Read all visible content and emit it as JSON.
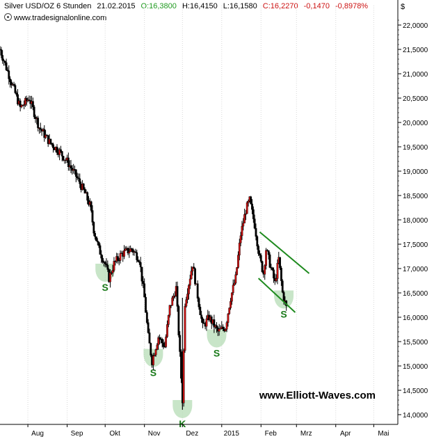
{
  "header": {
    "symbol": "Silver USD/OZ 6 Stunden",
    "date": "21.02.2015",
    "open": "O:16,3800",
    "high": "H:16,4150",
    "low": "L:16,1580",
    "close": "C:16,2270",
    "change": "-0,1470",
    "change_pct": "-0,8978%",
    "source": "www.tradesignalonline.com",
    "currency": "$"
  },
  "watermark": "www.Elliott-Waves.com",
  "colors": {
    "candle_up": "#cc1111",
    "candle_down": "#000000",
    "trendline": "#1e8a1e",
    "marker_fill": "#b5dcb5",
    "marker_text": "#1a7a1a",
    "grid": "#d8d8d8"
  },
  "chart_data": {
    "type": "candlestick",
    "title": "Silver USD/OZ 6 Stunden",
    "ylim": [
      13.8,
      22.4
    ],
    "y_ticks": [
      "22,0000",
      "21,5000",
      "21,0000",
      "20,5000",
      "20,0000",
      "19,5000",
      "19,0000",
      "18,5000",
      "18,0000",
      "17,5000",
      "17,0000",
      "16,5000",
      "16,0000",
      "15,5000",
      "15,0000",
      "14,5000",
      "14,0000"
    ],
    "y_tick_values": [
      22.0,
      21.5,
      21.0,
      20.5,
      20.0,
      19.5,
      19.0,
      18.5,
      18.0,
      17.5,
      17.0,
      16.5,
      16.0,
      15.5,
      15.0,
      14.5,
      14.0
    ],
    "x_ticks": [
      "Aug",
      "Sep",
      "Okt",
      "Nov",
      "Dez",
      "2015",
      "Feb",
      "Mrz",
      "Apr",
      "Mai"
    ],
    "x_tick_dates": [
      "2014-08-01",
      "2014-09-01",
      "2014-10-01",
      "2014-11-01",
      "2014-12-01",
      "2015-01-01",
      "2015-02-01",
      "2015-03-01",
      "2015-04-01",
      "2015-05-01"
    ],
    "x_range": [
      "2014-07-10",
      "2015-05-20"
    ],
    "grid": "vertical",
    "price_path": [
      {
        "date": "2014-07-10",
        "price": 21.5
      },
      {
        "date": "2014-07-18",
        "price": 20.9
      },
      {
        "date": "2014-07-26",
        "price": 20.3
      },
      {
        "date": "2014-08-02",
        "price": 20.5
      },
      {
        "date": "2014-08-10",
        "price": 19.9
      },
      {
        "date": "2014-08-18",
        "price": 19.6
      },
      {
        "date": "2014-08-26",
        "price": 19.4
      },
      {
        "date": "2014-09-01",
        "price": 19.2
      },
      {
        "date": "2014-09-08",
        "price": 18.9
      },
      {
        "date": "2014-09-14",
        "price": 18.6
      },
      {
        "date": "2014-09-19",
        "price": 18.3
      },
      {
        "date": "2014-09-22",
        "price": 17.8
      },
      {
        "date": "2014-09-26",
        "price": 17.4
      },
      {
        "date": "2014-10-01",
        "price": 17.1
      },
      {
        "date": "2014-10-04",
        "price": 16.8
      },
      {
        "date": "2014-10-08",
        "price": 17.1
      },
      {
        "date": "2014-10-14",
        "price": 17.3
      },
      {
        "date": "2014-10-22",
        "price": 17.4
      },
      {
        "date": "2014-10-28",
        "price": 17.2
      },
      {
        "date": "2014-11-01",
        "price": 16.4
      },
      {
        "date": "2014-11-04",
        "price": 15.6
      },
      {
        "date": "2014-11-07",
        "price": 15.1
      },
      {
        "date": "2014-11-12",
        "price": 15.6
      },
      {
        "date": "2014-11-17",
        "price": 15.4
      },
      {
        "date": "2014-11-21",
        "price": 16.2
      },
      {
        "date": "2014-11-26",
        "price": 16.6
      },
      {
        "date": "2014-12-01",
        "price": 14.3
      },
      {
        "date": "2014-12-03",
        "price": 16.3
      },
      {
        "date": "2014-12-09",
        "price": 17.1
      },
      {
        "date": "2014-12-12",
        "price": 16.6
      },
      {
        "date": "2014-12-17",
        "price": 15.8
      },
      {
        "date": "2014-12-22",
        "price": 16.0
      },
      {
        "date": "2014-12-29",
        "price": 15.7
      },
      {
        "date": "2015-01-04",
        "price": 15.8
      },
      {
        "date": "2015-01-08",
        "price": 16.4
      },
      {
        "date": "2015-01-12",
        "price": 16.8
      },
      {
        "date": "2015-01-16",
        "price": 17.7
      },
      {
        "date": "2015-01-20",
        "price": 18.2
      },
      {
        "date": "2015-01-23",
        "price": 18.4
      },
      {
        "date": "2015-01-27",
        "price": 17.9
      },
      {
        "date": "2015-01-31",
        "price": 17.2
      },
      {
        "date": "2015-02-03",
        "price": 16.9
      },
      {
        "date": "2015-02-05",
        "price": 17.4
      },
      {
        "date": "2015-02-09",
        "price": 17.0
      },
      {
        "date": "2015-02-12",
        "price": 16.7
      },
      {
        "date": "2015-02-15",
        "price": 17.2
      },
      {
        "date": "2015-02-18",
        "price": 16.5
      },
      {
        "date": "2015-02-21",
        "price": 16.2
      }
    ],
    "trendlines": [
      {
        "from": {
          "date": "2015-01-31",
          "price": 17.75
        },
        "to": {
          "date": "2015-03-11",
          "price": 16.9
        }
      },
      {
        "from": {
          "date": "2015-01-30",
          "price": 16.8
        },
        "to": {
          "date": "2015-02-28",
          "price": 16.1
        }
      }
    ],
    "annotations": [
      {
        "label": "S",
        "date": "2014-10-01",
        "price": 16.9
      },
      {
        "label": "S",
        "date": "2014-11-08",
        "price": 15.15
      },
      {
        "label": "K",
        "date": "2014-12-01",
        "price": 14.1
      },
      {
        "label": "S",
        "date": "2014-12-28",
        "price": 15.55
      },
      {
        "label": "S",
        "date": "2015-02-19",
        "price": 16.35
      }
    ]
  }
}
